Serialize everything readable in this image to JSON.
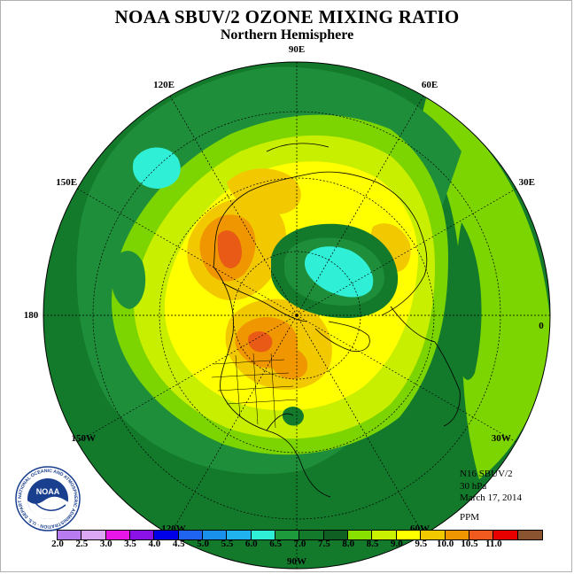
{
  "title": "NOAA SBUV/2 OZONE MIXING RATIO",
  "subtitle": "Northern Hemisphere",
  "longitude_labels": [
    {
      "text": "90E",
      "angle": 90
    },
    {
      "text": "60E",
      "angle": 60
    },
    {
      "text": "30E",
      "angle": 30
    },
    {
      "text": "0",
      "angle": 0
    },
    {
      "text": "30W",
      "angle": -30
    },
    {
      "text": "60W",
      "angle": -60
    },
    {
      "text": "90W",
      "angle": -90
    },
    {
      "text": "120W",
      "angle": -120
    },
    {
      "text": "150W",
      "angle": -150
    },
    {
      "text": "180",
      "angle": 180
    },
    {
      "text": "150E",
      "angle": 150
    },
    {
      "text": "120E",
      "angle": 120
    }
  ],
  "info": {
    "satellite": "N16 SBUV/2",
    "level": "30 hPa",
    "date": "March 17, 2014",
    "units": "PPM"
  },
  "logo": {
    "text": "NOAA",
    "ring_text": "NATIONAL OCEANIC AND ATMOSPHERIC ADMINISTRATION · U.S. DEPARTMENT OF COMMERCE"
  },
  "colorbar": {
    "ticks": [
      "2.0",
      "2.5",
      "3.0",
      "3.5",
      "4.0",
      "4.5",
      "5.0",
      "5.5",
      "6.0",
      "6.5",
      "7.0",
      "7.5",
      "8.0",
      "8.5",
      "9.0",
      "9.5",
      "10.0",
      "10.5",
      "11.0"
    ],
    "colors": [
      "#b87cf0",
      "#dca8f4",
      "#e817e8",
      "#8a12e6",
      "#0000e8",
      "#1f64f0",
      "#1890ec",
      "#20b2ee",
      "#2ff0d6",
      "#1d9a3c",
      "#137a2c",
      "#0f5e22",
      "#88e000",
      "#c8f000",
      "#ffff00",
      "#f2c800",
      "#f09600",
      "#f05a1e",
      "#e80000",
      "#8a5430"
    ]
  },
  "map": {
    "contour_colors": {
      "level_6_5": "#1e8e3a",
      "level_7_0": "#137a2c",
      "level_7_5": "#7cd400",
      "level_8_0": "#c8ee00",
      "level_8_5": "#ffff00",
      "level_9_0": "#f2c800",
      "level_9_5": "#f09600",
      "level_10_0": "#e85a16",
      "level_6_0": "#2ff0d6"
    }
  }
}
